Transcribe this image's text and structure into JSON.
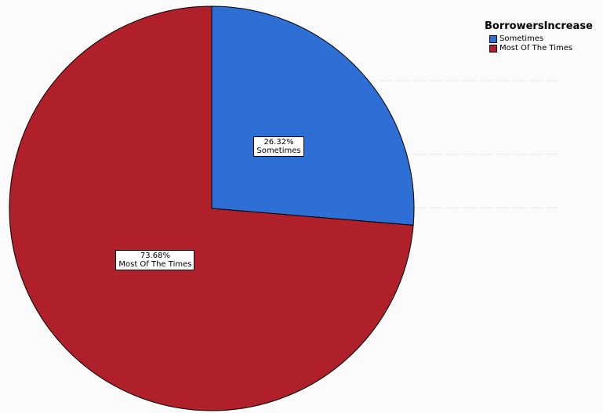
{
  "chart_data": {
    "type": "pie",
    "legend_title": "BorrowersIncrease",
    "legend_placement": "top-right",
    "slices": [
      {
        "name": "Sometimes",
        "value": 26.32,
        "label": "26.32%",
        "color": "#2e6fd6"
      },
      {
        "name": "Most Of The Times",
        "value": 73.68,
        "label": "73.68%",
        "color": "#b0202a"
      }
    ]
  }
}
